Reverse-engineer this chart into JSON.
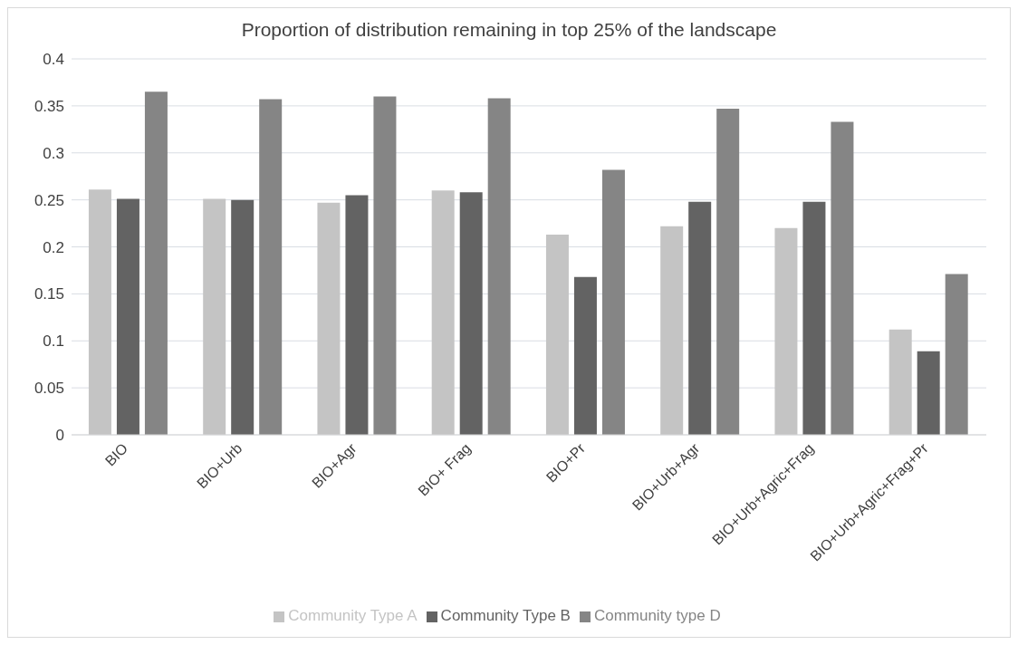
{
  "chart_data": {
    "type": "bar",
    "title": "Proportion of distribution remaining in top 25% of the landscape",
    "categories": [
      "BIO",
      "BIO+Urb",
      "BIO+Agr",
      "BIO+ Frag",
      "BIO+Pr",
      "BIO+Urb+Agr",
      "BIO+Urb+Agric+Frag",
      "BIO+Urb+Agric+Frag+Pr"
    ],
    "series": [
      {
        "name": "Community Type A",
        "color": "#c4c4c4",
        "values": [
          0.261,
          0.251,
          0.247,
          0.26,
          0.213,
          0.222,
          0.22,
          0.112
        ]
      },
      {
        "name": "Community Type B",
        "color": "#636363",
        "values": [
          0.251,
          0.25,
          0.255,
          0.258,
          0.168,
          0.248,
          0.248,
          0.089
        ]
      },
      {
        "name": "Community type D",
        "color": "#858585",
        "values": [
          0.365,
          0.357,
          0.36,
          0.358,
          0.282,
          0.347,
          0.333,
          0.171
        ]
      }
    ],
    "ylim": [
      0,
      0.4
    ],
    "yticks": [
      0,
      0.05,
      0.1,
      0.15,
      0.2,
      0.25,
      0.3,
      0.35,
      0.4
    ],
    "grid": "y",
    "legend": "bottom"
  }
}
